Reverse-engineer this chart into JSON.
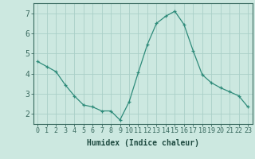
{
  "x": [
    0,
    1,
    2,
    3,
    4,
    5,
    6,
    7,
    8,
    9,
    10,
    11,
    12,
    13,
    14,
    15,
    16,
    17,
    18,
    19,
    20,
    21,
    22,
    23
  ],
  "y": [
    4.6,
    4.35,
    4.1,
    3.45,
    2.9,
    2.45,
    2.35,
    2.15,
    2.15,
    1.7,
    2.6,
    4.05,
    5.45,
    6.5,
    6.85,
    7.1,
    6.45,
    5.15,
    3.95,
    3.55,
    3.3,
    3.1,
    2.9,
    2.35
  ],
  "line_color": "#2e8b7a",
  "marker": "+",
  "bg_color": "#cce8e0",
  "grid_color": "#aacfc8",
  "axis_color": "#3a6a60",
  "xlabel": "Humidex (Indice chaleur)",
  "ylim": [
    1.5,
    7.5
  ],
  "xlim": [
    -0.5,
    23.5
  ],
  "yticks": [
    2,
    3,
    4,
    5,
    6,
    7
  ],
  "xticks": [
    0,
    1,
    2,
    3,
    4,
    5,
    6,
    7,
    8,
    9,
    10,
    11,
    12,
    13,
    14,
    15,
    16,
    17,
    18,
    19,
    20,
    21,
    22,
    23
  ],
  "xtick_labels": [
    "0",
    "1",
    "2",
    "3",
    "4",
    "5",
    "6",
    "7",
    "8",
    "9",
    "10",
    "11",
    "12",
    "13",
    "14",
    "15",
    "16",
    "17",
    "18",
    "19",
    "20",
    "21",
    "22",
    "23"
  ],
  "font_color": "#1e4a40",
  "tick_font_size": 6,
  "xlabel_font_size": 7
}
